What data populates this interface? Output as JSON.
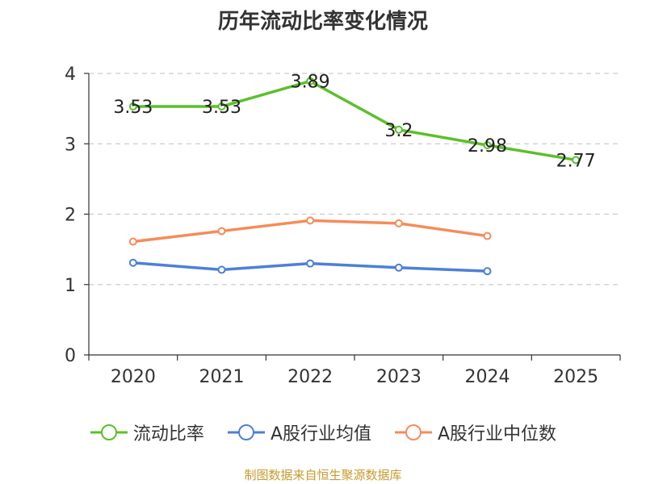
{
  "chart_data": {
    "type": "line",
    "title": "历年流动比率变化情况",
    "categories": [
      "2020",
      "2021",
      "2022",
      "2023",
      "2024",
      "2025"
    ],
    "ylim": [
      0,
      4
    ],
    "yticks": [
      "0",
      "1",
      "2",
      "3",
      "4"
    ],
    "grid": true,
    "legend_position": "bottom",
    "series": [
      {
        "name": "流动比率",
        "color": "#5cc02a",
        "labels": true,
        "values": [
          3.53,
          3.53,
          3.89,
          3.2,
          2.98,
          2.77
        ],
        "value_labels": [
          "3.53",
          "3.53",
          "3.89",
          "3.2",
          "2.98",
          "2.77"
        ]
      },
      {
        "name": "A股行业均值",
        "color": "#4e7fd9",
        "labels": false,
        "values": [
          1.31,
          1.21,
          1.3,
          1.24,
          1.19,
          null
        ]
      },
      {
        "name": "A股行业中位数",
        "color": "#f58c5a",
        "labels": false,
        "values": [
          1.61,
          1.76,
          1.91,
          1.87,
          1.69,
          null
        ]
      }
    ]
  },
  "footer": {
    "source": "制图数据来自恒生聚源数据库"
  }
}
